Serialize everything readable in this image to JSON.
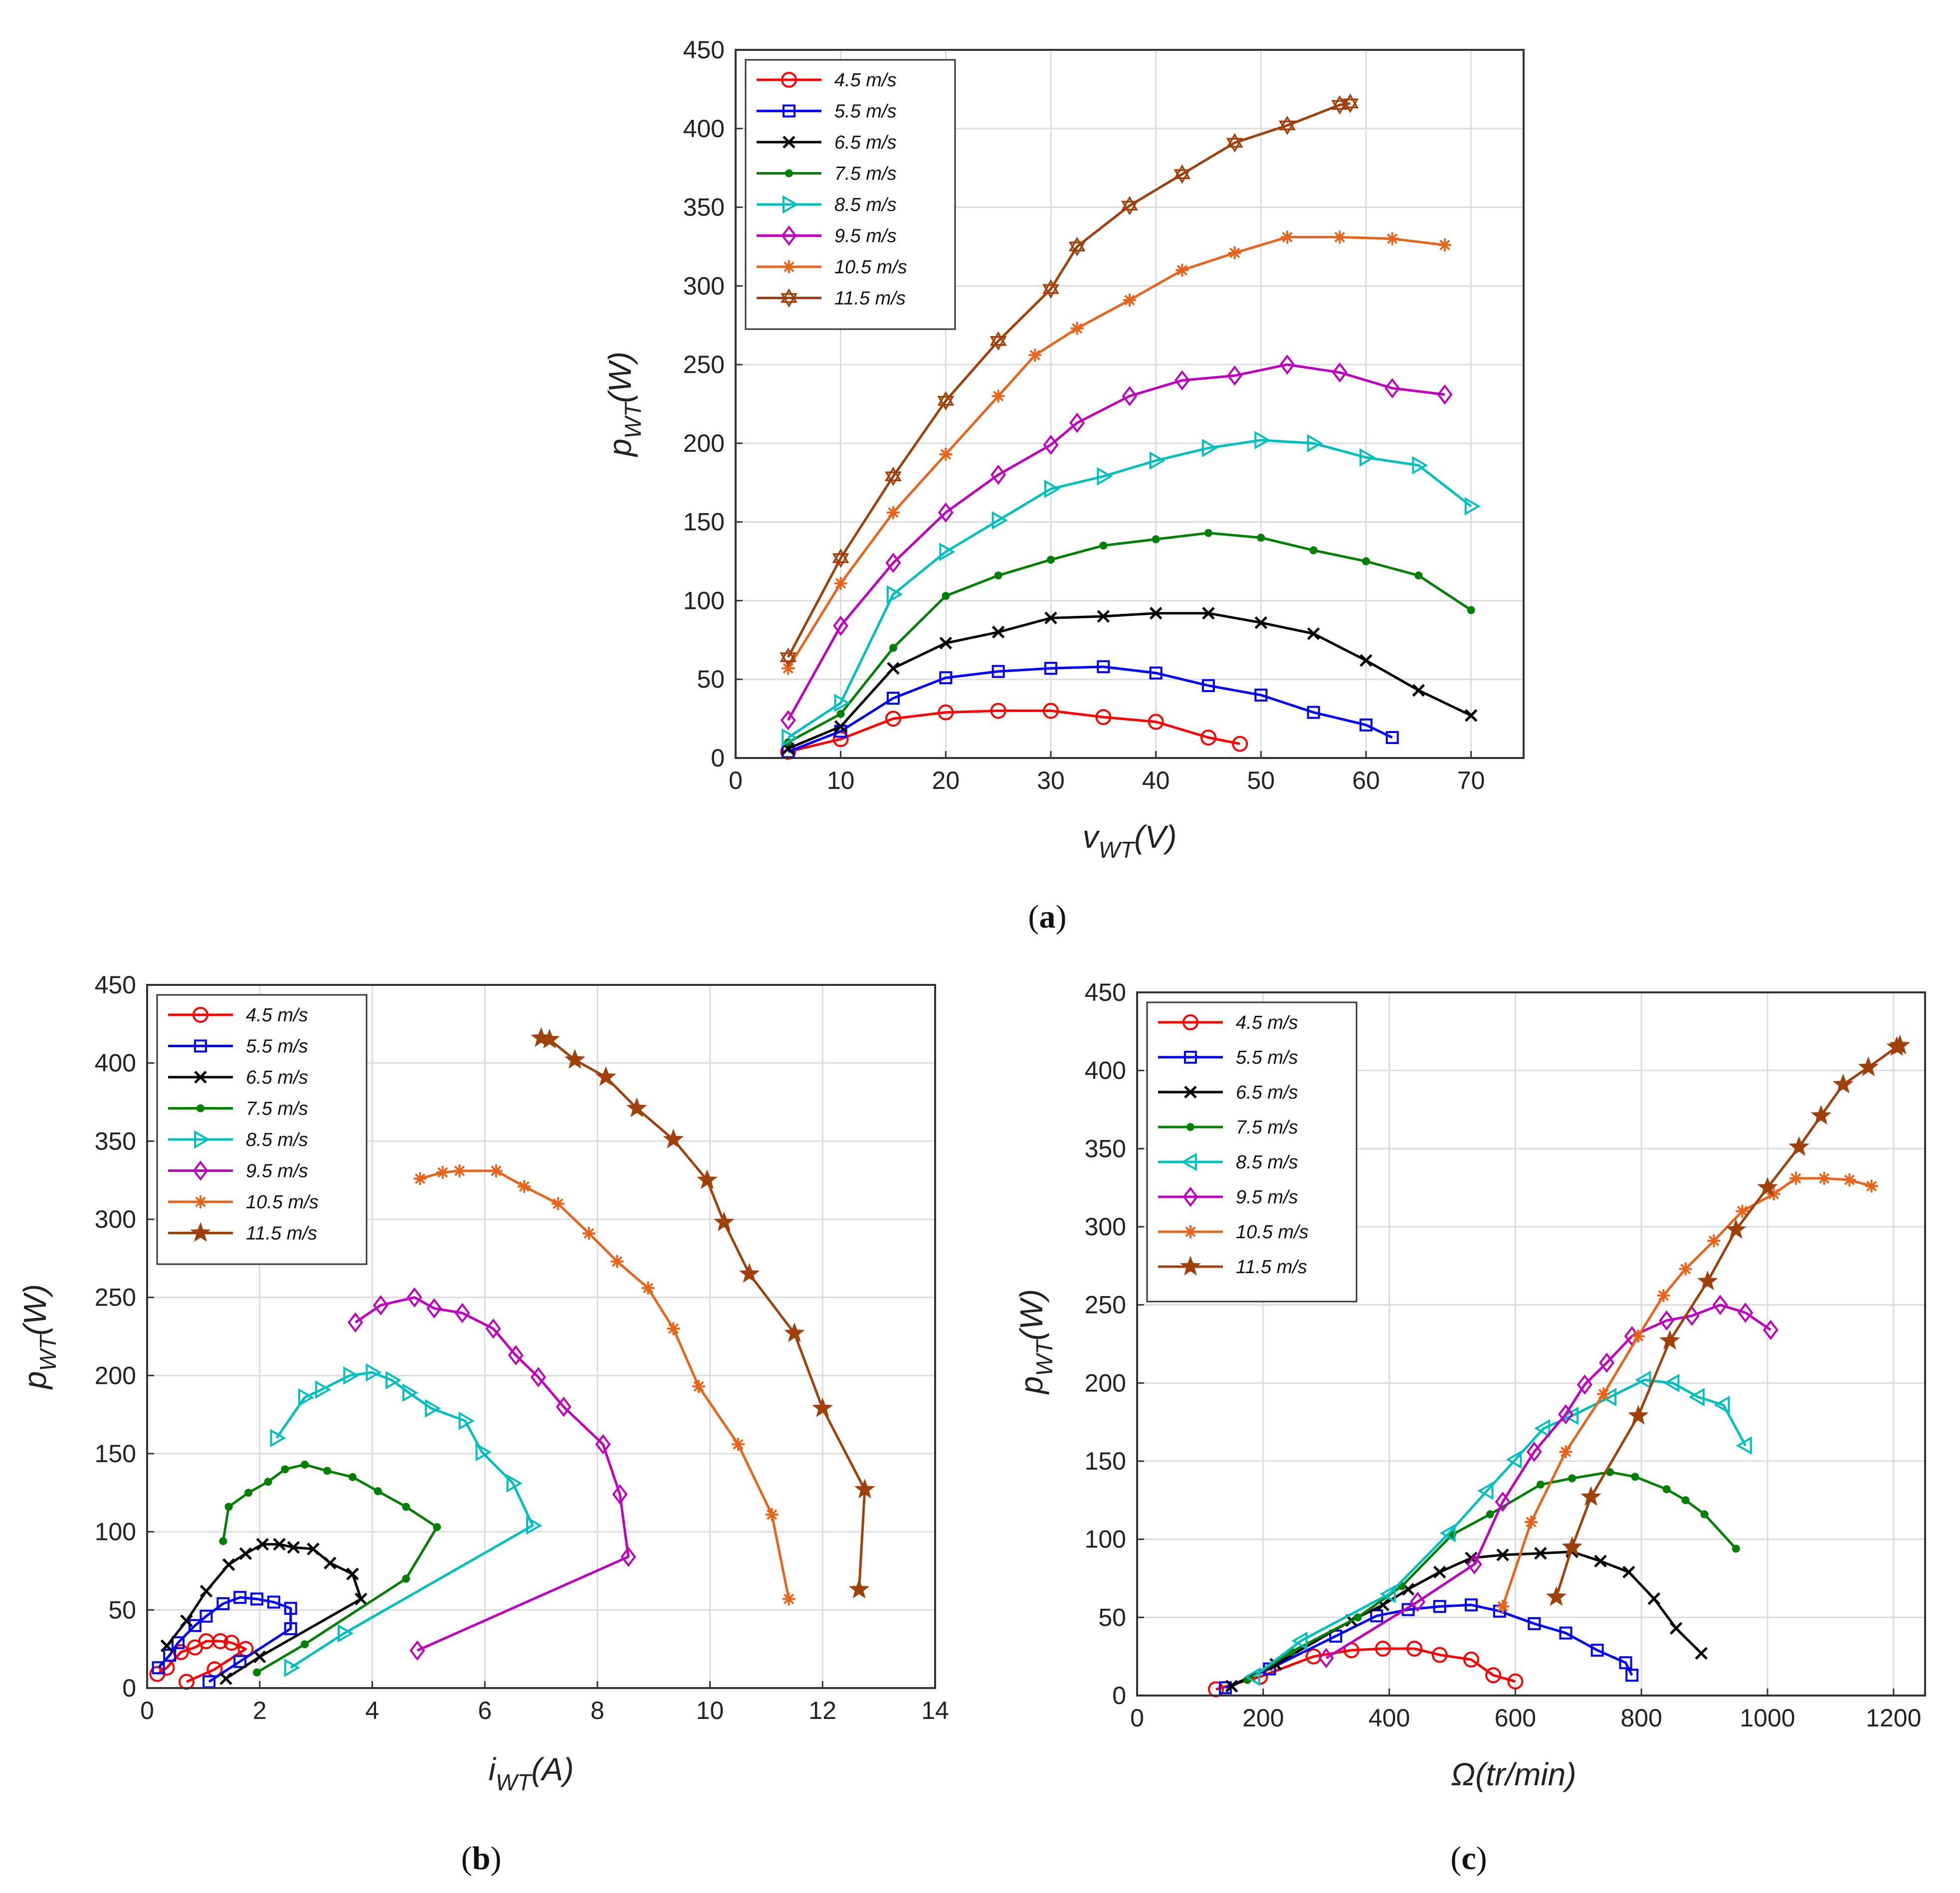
{
  "speeds": [
    "4.5 m/s",
    "5.5 m/s",
    "6.5 m/s",
    "7.5 m/s",
    "8.5 m/s",
    "9.5 m/s",
    "10.5 m/s",
    "11.5 m/s"
  ],
  "colors": [
    "#ff0000",
    "#0000ff",
    "#000000",
    "#008000",
    "#00bfbf",
    "#bf00bf",
    "#e8641b",
    "#a0400b"
  ],
  "chart_data": [
    {
      "type": "line",
      "id": "a",
      "caption_label": "a",
      "xlabel_main": "v",
      "xlabel_sub": "WT",
      "xlabel_unit": "(V)",
      "ylabel_main": "p",
      "ylabel_sub": "WT",
      "ylabel_unit": "(W)",
      "xlim": [
        0,
        75
      ],
      "ylim": [
        0,
        450
      ],
      "xticks": [
        0,
        10,
        20,
        30,
        40,
        50,
        60,
        70
      ],
      "yticks": [
        0,
        50,
        100,
        150,
        200,
        250,
        300,
        350,
        400,
        450
      ],
      "grid": true,
      "legend": "top-left",
      "series": [
        {
          "name": "4.5 m/s",
          "marker": "circle",
          "x": [
            5,
            10,
            15,
            20,
            25,
            30,
            35,
            40,
            45,
            48
          ],
          "y": [
            4,
            12,
            25,
            29,
            30,
            30,
            26,
            23,
            13,
            9
          ]
        },
        {
          "name": "5.5 m/s",
          "marker": "square",
          "x": [
            5,
            10,
            15,
            20,
            25,
            30,
            35,
            40,
            45,
            50,
            55,
            60,
            62.5
          ],
          "y": [
            4,
            17,
            38,
            51,
            55,
            57,
            58,
            54,
            46,
            40,
            29,
            21,
            13
          ]
        },
        {
          "name": "6.5 m/s",
          "marker": "x",
          "x": [
            5,
            10,
            15,
            20,
            25,
            30,
            35,
            40,
            45,
            50,
            55,
            60,
            65,
            70
          ],
          "y": [
            6,
            20,
            57,
            73,
            80,
            89,
            90,
            92,
            92,
            86,
            79,
            62,
            43,
            27
          ]
        },
        {
          "name": "7.5 m/s",
          "marker": "dot",
          "x": [
            5,
            10,
            15,
            20,
            25,
            30,
            35,
            40,
            45,
            50,
            55,
            60,
            65,
            70
          ],
          "y": [
            10,
            28,
            70,
            103,
            116,
            126,
            135,
            139,
            143,
            140,
            132,
            125,
            116,
            94
          ]
        },
        {
          "name": "8.5 m/s",
          "marker": "triangle-right",
          "x": [
            5,
            10,
            15,
            20,
            25,
            30,
            35,
            40,
            45,
            50,
            55,
            60,
            65,
            70
          ],
          "y": [
            13,
            35,
            104,
            131,
            151,
            171,
            179,
            189,
            197,
            202,
            200,
            191,
            186,
            160
          ]
        },
        {
          "name": "9.5 m/s",
          "marker": "diamond",
          "x": [
            5,
            10,
            15,
            20,
            25,
            30,
            32.5,
            37.5,
            42.5,
            47.5,
            52.5,
            57.5,
            62.5,
            67.5
          ],
          "y": [
            24,
            84,
            124,
            156,
            180,
            199,
            213,
            230,
            240,
            243,
            250,
            245,
            235,
            231
          ]
        },
        {
          "name": "10.5 m/s",
          "marker": "asterisk",
          "x": [
            5,
            10,
            15,
            20,
            25,
            28.5,
            32.5,
            37.5,
            42.5,
            47.5,
            52.5,
            57.5,
            62.5,
            67.5
          ],
          "y": [
            57,
            111,
            156,
            193,
            230,
            256,
            273,
            291,
            310,
            321,
            331,
            331,
            330,
            326
          ]
        },
        {
          "name": "11.5 m/s",
          "marker": "hexagram",
          "x": [
            5,
            10,
            15,
            20,
            25,
            30,
            32.5,
            37.5,
            42.5,
            47.5,
            52.5,
            57.5,
            58.5
          ],
          "y": [
            64,
            127,
            179,
            227,
            265,
            298,
            325,
            351,
            371,
            391,
            402,
            415,
            416
          ]
        }
      ]
    },
    {
      "type": "line",
      "id": "b",
      "caption_label": "b",
      "xlabel_main": "i",
      "xlabel_sub": "WT",
      "xlabel_unit": "(A)",
      "ylabel_main": "p",
      "ylabel_sub": "WT",
      "ylabel_unit": "(W)",
      "xlim": [
        0,
        14
      ],
      "ylim": [
        0,
        450
      ],
      "xticks": [
        0,
        2,
        4,
        6,
        8,
        10,
        12,
        14
      ],
      "yticks": [
        0,
        50,
        100,
        150,
        200,
        250,
        300,
        350,
        400,
        450
      ],
      "grid": true,
      "legend": "top-left",
      "series": [
        {
          "name": "4.5 m/s",
          "marker": "circle",
          "x": [
            0.7,
            1.2,
            1.75,
            1.5,
            1.3,
            1.05,
            0.85,
            0.6,
            0.35,
            0.18
          ],
          "y": [
            4,
            12,
            25,
            29,
            30,
            30,
            26,
            23,
            13,
            9
          ]
        },
        {
          "name": "5.5 m/s",
          "marker": "square",
          "x": [
            1.1,
            1.65,
            2.55,
            2.55,
            2.25,
            1.95,
            1.65,
            1.35,
            1.05,
            0.85,
            0.55,
            0.4,
            0.2
          ],
          "y": [
            4,
            17,
            38,
            51,
            55,
            57,
            58,
            54,
            46,
            40,
            29,
            21,
            13
          ]
        },
        {
          "name": "6.5 m/s",
          "marker": "x",
          "x": [
            1.4,
            2.0,
            3.8,
            3.65,
            3.25,
            2.95,
            2.6,
            2.35,
            2.05,
            1.75,
            1.45,
            1.05,
            0.7,
            0.35
          ],
          "y": [
            6,
            20,
            57,
            73,
            80,
            89,
            90,
            92,
            92,
            86,
            79,
            62,
            43,
            27
          ]
        },
        {
          "name": "7.5 m/s",
          "marker": "dot",
          "x": [
            1.95,
            2.8,
            4.6,
            5.15,
            4.6,
            4.1,
            3.65,
            3.2,
            2.8,
            2.45,
            2.15,
            1.8,
            1.45,
            1.35
          ],
          "y": [
            10,
            28,
            70,
            103,
            116,
            126,
            135,
            139,
            143,
            140,
            132,
            125,
            116,
            94
          ]
        },
        {
          "name": "8.5 m/s",
          "marker": "triangle-right",
          "x": [
            2.55,
            3.5,
            6.85,
            6.5,
            5.95,
            5.65,
            5.05,
            4.65,
            4.35,
            4.0,
            3.6,
            3.1,
            2.8,
            2.3
          ],
          "y": [
            13,
            35,
            104,
            131,
            151,
            171,
            179,
            189,
            197,
            202,
            200,
            191,
            186,
            160
          ]
        },
        {
          "name": "9.5 m/s",
          "marker": "diamond",
          "x": [
            4.8,
            8.55,
            8.4,
            8.1,
            7.4,
            6.95,
            6.55,
            6.15,
            5.6,
            5.1,
            4.75,
            4.15,
            3.7
          ],
          "y": [
            24,
            84,
            124,
            156,
            180,
            199,
            213,
            230,
            240,
            243,
            250,
            245,
            234
          ]
        },
        {
          "name": "10.5 m/s",
          "marker": "asterisk",
          "x": [
            11.4,
            11.1,
            10.5,
            9.8,
            9.35,
            8.9,
            8.35,
            7.85,
            7.3,
            6.7,
            6.2,
            5.55,
            5.25,
            4.85
          ],
          "y": [
            57,
            111,
            156,
            193,
            230,
            256,
            273,
            291,
            310,
            321,
            331,
            331,
            330,
            326
          ]
        },
        {
          "name": "11.5 m/s",
          "marker": "pentagram",
          "x": [
            12.65,
            12.75,
            12.0,
            11.5,
            10.7,
            10.25,
            9.95,
            9.35,
            8.7,
            8.15,
            7.6,
            7.15,
            7.0
          ],
          "y": [
            63,
            127,
            179,
            227,
            265,
            298,
            325,
            351,
            371,
            391,
            402,
            415,
            416
          ]
        }
      ]
    },
    {
      "type": "line",
      "id": "c",
      "caption_label": "c",
      "xlabel_main": "Ω(tr/min)",
      "xlabel_sub": "",
      "xlabel_unit": "",
      "ylabel_main": "p",
      "ylabel_sub": "WT",
      "ylabel_unit": "(W)",
      "xlim": [
        0,
        1250
      ],
      "ylim": [
        0,
        450
      ],
      "xticks": [
        0,
        200,
        400,
        600,
        800,
        1000,
        1200
      ],
      "yticks": [
        0,
        50,
        100,
        150,
        200,
        250,
        300,
        350,
        400,
        450
      ],
      "grid": true,
      "legend": "top-left",
      "series": [
        {
          "name": "4.5 m/s",
          "marker": "circle",
          "x": [
            125,
            195,
            280,
            340,
            390,
            440,
            480,
            530,
            565,
            600
          ],
          "y": [
            4,
            12,
            25,
            29,
            30,
            30,
            26,
            23,
            13,
            9
          ]
        },
        {
          "name": "5.5 m/s",
          "marker": "square",
          "x": [
            140,
            210,
            315,
            380,
            430,
            480,
            530,
            575,
            630,
            680,
            730,
            775,
            785
          ],
          "y": [
            5,
            17,
            38,
            51,
            55,
            57,
            58,
            54,
            46,
            40,
            29,
            21,
            13
          ]
        },
        {
          "name": "6.5 m/s",
          "marker": "x",
          "x": [
            150,
            220,
            340,
            390,
            430,
            480,
            530,
            580,
            640,
            690,
            735,
            780,
            820,
            855,
            895
          ],
          "y": [
            6,
            20,
            48,
            58,
            68,
            79,
            88,
            90,
            91,
            92,
            86,
            79,
            62,
            43,
            27
          ]
        },
        {
          "name": "7.5 m/s",
          "marker": "dot",
          "x": [
            175,
            245,
            350,
            420,
            500,
            560,
            640,
            690,
            750,
            790,
            840,
            870,
            900,
            950
          ],
          "y": [
            10,
            28,
            50,
            70,
            103,
            116,
            135,
            139,
            143,
            140,
            132,
            125,
            116,
            94
          ]
        },
        {
          "name": "8.5 m/s",
          "marker": "triangle-left",
          "x": [
            185,
            260,
            400,
            495,
            555,
            600,
            645,
            690,
            750,
            805,
            850,
            890,
            930,
            965
          ],
          "y": [
            12,
            35,
            65,
            104,
            131,
            151,
            171,
            179,
            191,
            202,
            200,
            191,
            186,
            160
          ]
        },
        {
          "name": "9.5 m/s",
          "marker": "diamond",
          "x": [
            300,
            445,
            535,
            580,
            630,
            680,
            710,
            745,
            785,
            840,
            880,
            925,
            965,
            1005
          ],
          "y": [
            24,
            60,
            84,
            124,
            156,
            180,
            199,
            213,
            230,
            240,
            243,
            250,
            245,
            234
          ]
        },
        {
          "name": "10.5 m/s",
          "marker": "asterisk",
          "x": [
            580,
            625,
            680,
            740,
            795,
            835,
            870,
            915,
            960,
            1010,
            1045,
            1090,
            1130,
            1165
          ],
          "y": [
            57,
            111,
            156,
            193,
            230,
            256,
            273,
            291,
            310,
            321,
            331,
            331,
            330,
            326
          ]
        },
        {
          "name": "11.5 m/s",
          "marker": "pentagram",
          "x": [
            665,
            690,
            720,
            795,
            845,
            905,
            950,
            1000,
            1050,
            1085,
            1120,
            1160,
            1205,
            1210
          ],
          "y": [
            63,
            95,
            127,
            179,
            227,
            265,
            298,
            325,
            351,
            371,
            391,
            402,
            415,
            416
          ]
        }
      ]
    }
  ]
}
